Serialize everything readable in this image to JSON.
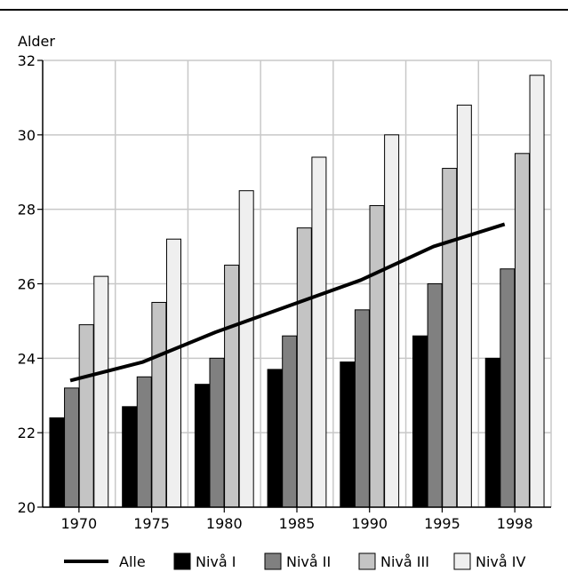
{
  "chart_data": {
    "type": "bar",
    "ylabel": "Alder",
    "categories": [
      "1970",
      "1975",
      "1980",
      "1985",
      "1990",
      "1995",
      "1998"
    ],
    "ylim": [
      20,
      32
    ],
    "yticks": [
      20,
      22,
      24,
      26,
      28,
      30,
      32
    ],
    "grid": true,
    "legend_position": "bottom",
    "series": [
      {
        "name": "Nivå I",
        "color": "#000000",
        "values": [
          22.4,
          22.7,
          23.3,
          23.7,
          23.9,
          24.6,
          24.0
        ]
      },
      {
        "name": "Nivå II",
        "color": "#808080",
        "values": [
          23.2,
          23.5,
          24.0,
          24.6,
          25.3,
          26.0,
          26.4
        ]
      },
      {
        "name": "Nivå III",
        "color": "#c4c4c4",
        "values": [
          24.9,
          25.5,
          26.5,
          27.5,
          28.1,
          29.1,
          29.5
        ]
      },
      {
        "name": "Nivå IV",
        "color": "#efefef",
        "values": [
          26.2,
          27.2,
          28.5,
          29.4,
          30.0,
          30.8,
          31.6
        ]
      }
    ],
    "line": {
      "name": "Alle",
      "color": "#000000",
      "values": [
        23.4,
        23.9,
        24.7,
        25.4,
        26.1,
        27.0,
        27.6
      ]
    }
  }
}
